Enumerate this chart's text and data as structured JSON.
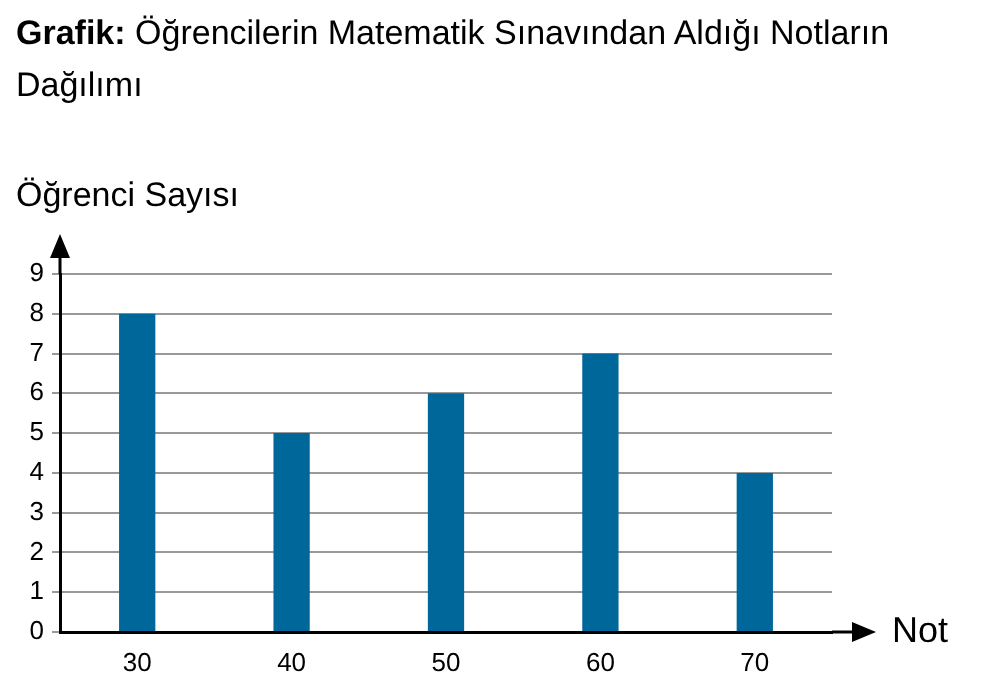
{
  "chart_data": {
    "type": "bar",
    "title": "Grafik: Öğrencilerin Matematik Sınavından Aldığı Notların Dağılımı",
    "xlabel": "Not",
    "ylabel": "Öğrenci Sayısı",
    "categories": [
      "30",
      "40",
      "50",
      "60",
      "70"
    ],
    "values": [
      8,
      5,
      6,
      7,
      4
    ],
    "color": "#00679a",
    "ylim": [
      0,
      9
    ],
    "yticks": [
      0,
      1,
      2,
      3,
      4,
      5,
      6,
      7,
      8,
      9
    ],
    "grid": "y",
    "legend": false
  }
}
